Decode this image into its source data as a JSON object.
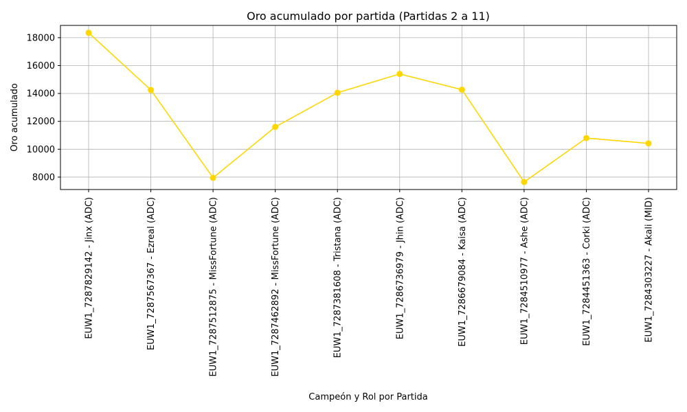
{
  "chart_data": {
    "type": "line",
    "title": "Oro acumulado por partida (Partidas 2 a 11)",
    "xlabel": "Campeón y Rol por Partida",
    "ylabel": "Oro acumulado",
    "categories": [
      "EUW1_7287829142 - Jinx (ADC)",
      "EUW1_7287567367 - Ezreal (ADC)",
      "EUW1_7287512875 - MissFortune (ADC)",
      "EUW1_7287462892 - MissFortune (ADC)",
      "EUW1_7287381608 - Tristana (ADC)",
      "EUW1_7286736979 - Jhin (ADC)",
      "EUW1_7286679084 - Kaisa (ADC)",
      "EUW1_7284510977 - Ashe (ADC)",
      "EUW1_7284451363 - Corki (ADC)",
      "EUW1_7284303227 - Akali (MID)"
    ],
    "series": [
      {
        "values": [
          18350,
          14250,
          7950,
          11600,
          14050,
          15400,
          14270,
          7650,
          10800,
          10420
        ]
      }
    ],
    "yticks": [
      8000,
      10000,
      12000,
      14000,
      16000,
      18000
    ],
    "ylim": [
      7110,
      18880
    ],
    "grid": true,
    "line_color": "#FFD700",
    "marker_color": "#FFD700"
  }
}
